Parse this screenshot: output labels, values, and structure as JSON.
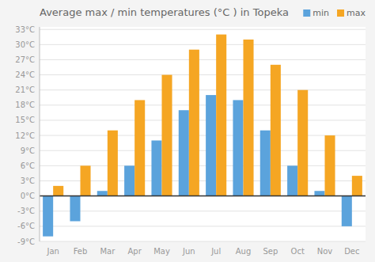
{
  "chart_data": {
    "type": "bar",
    "title": "Average max / min temperatures (°C ) in Topeka",
    "categories": [
      "Jan",
      "Feb",
      "Mar",
      "Apr",
      "May",
      "Jun",
      "Jul",
      "Aug",
      "Sep",
      "Oct",
      "Nov",
      "Dec"
    ],
    "series": [
      {
        "name": "min",
        "color": "#5BA3DC",
        "values": [
          -8,
          -5,
          1,
          6,
          11,
          17,
          20,
          19,
          13,
          6,
          1,
          -6
        ]
      },
      {
        "name": "max",
        "color": "#F5A623",
        "values": [
          2,
          6,
          13,
          19,
          24,
          29,
          32,
          31,
          26,
          21,
          12,
          4
        ]
      }
    ],
    "ylim": [
      -9,
      33.5
    ],
    "yticks": [
      {
        "value": -9,
        "label": "-9°C"
      },
      {
        "value": -6,
        "label": "-6°C"
      },
      {
        "value": -3,
        "label": "-3°C"
      },
      {
        "value": 0,
        "label": "0°C"
      },
      {
        "value": 3,
        "label": "3°C"
      },
      {
        "value": 6,
        "label": "6°C"
      },
      {
        "value": 9,
        "label": "9°C"
      },
      {
        "value": 12,
        "label": "12°C"
      },
      {
        "value": 15,
        "label": "15°C"
      },
      {
        "value": 18,
        "label": "18°C"
      },
      {
        "value": 21,
        "label": "21°C"
      },
      {
        "value": 24,
        "label": "24°C"
      },
      {
        "value": 27,
        "label": "27°C"
      },
      {
        "value": 30,
        "label": "30°C"
      },
      {
        "value": 33,
        "label": "33°C"
      }
    ],
    "grid": true,
    "legend": "upper right"
  }
}
